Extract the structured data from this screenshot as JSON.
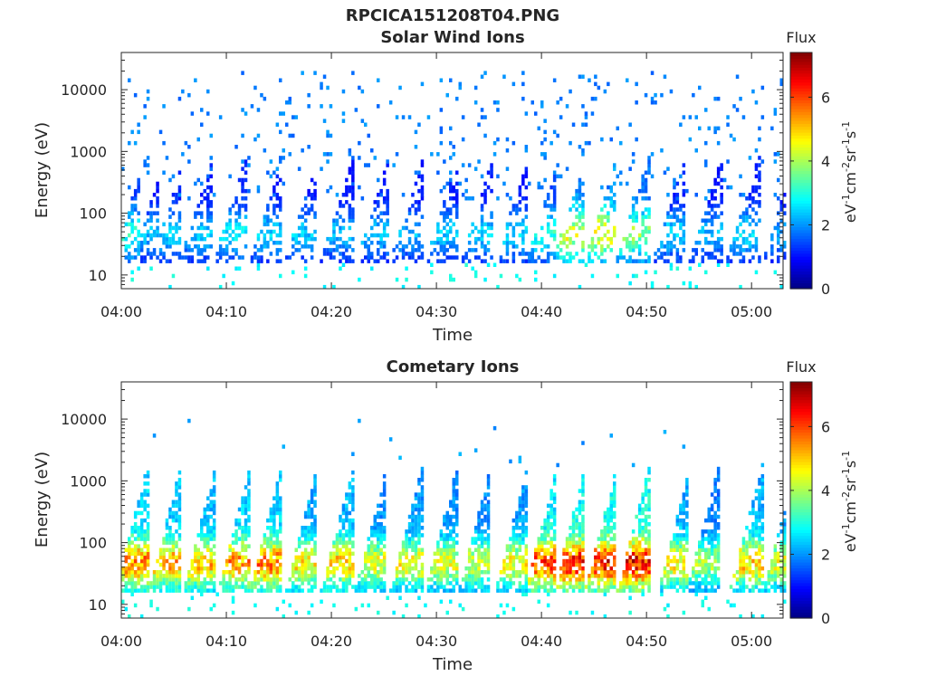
{
  "figure_title": "RPCICA151208T04.PNG",
  "chart_data": [
    {
      "type": "heatmap",
      "title": "Solar Wind Ions",
      "xlabel": "Time",
      "ylabel": "Energy (eV)",
      "x_ticks": [
        "04:00",
        "04:10",
        "04:20",
        "04:30",
        "04:40",
        "04:50",
        "05:00"
      ],
      "x_range_minutes": [
        0,
        63
      ],
      "y_scale": "log",
      "y_ticks": [
        10,
        100,
        1000,
        10000
      ],
      "y_tick_labels": [
        "10",
        "100",
        "1000",
        "10000"
      ],
      "ylim": [
        6,
        40000
      ],
      "colorbar": {
        "title": "Flux",
        "label": "eV-1cm-2sr-1s-1",
        "range": [
          0,
          7.4
        ],
        "ticks": [
          "0",
          "2",
          "4",
          "6"
        ],
        "colormap": "jet"
      },
      "scans": [
        {
          "t": 0.6,
          "flux": 3.2
        },
        {
          "t": 2.5,
          "flux": 2.4
        },
        {
          "t": 4.3,
          "flux": 2.6
        },
        {
          "t": 7.0,
          "flux": 2.5
        },
        {
          "t": 10.2,
          "flux": 2.8
        },
        {
          "t": 13.7,
          "flux": 2.6
        },
        {
          "t": 17.0,
          "flux": 2.5
        },
        {
          "t": 20.4,
          "flux": 2.4
        },
        {
          "t": 23.8,
          "flux": 2.5
        },
        {
          "t": 27.0,
          "flux": 2.4
        },
        {
          "t": 30.4,
          "flux": 2.5
        },
        {
          "t": 33.7,
          "flux": 2.6
        },
        {
          "t": 37.0,
          "flux": 2.6
        },
        {
          "t": 40.0,
          "flux": 3.2
        },
        {
          "t": 42.5,
          "flux": 4.6
        },
        {
          "t": 45.5,
          "flux": 4.8
        },
        {
          "t": 48.5,
          "flux": 4.0
        },
        {
          "t": 52.0,
          "flux": 2.6
        },
        {
          "t": 55.5,
          "flux": 2.4
        },
        {
          "t": 59.0,
          "flux": 2.7
        },
        {
          "t": 62.5,
          "flux": 2.3
        }
      ],
      "background_energy_range": [
        150,
        20000
      ],
      "background_flux": 1.6
    },
    {
      "type": "heatmap",
      "title": "Cometary Ions",
      "xlabel": "Time",
      "ylabel": "Energy (eV)",
      "x_ticks": [
        "04:00",
        "04:10",
        "04:20",
        "04:30",
        "04:40",
        "04:50",
        "05:00"
      ],
      "x_range_minutes": [
        0,
        63
      ],
      "y_scale": "log",
      "y_ticks": [
        10,
        100,
        1000,
        10000
      ],
      "y_tick_labels": [
        "10",
        "100",
        "1000",
        "10000"
      ],
      "ylim": [
        6,
        40000
      ],
      "colorbar": {
        "title": "Flux",
        "label": "eV-1cm-2sr-1s-1",
        "range": [
          0,
          7.4
        ],
        "ticks": [
          "0",
          "2",
          "4",
          "6"
        ],
        "colormap": "jet"
      },
      "scans": [
        {
          "t": 0.8,
          "flux": 5.8
        },
        {
          "t": 4.0,
          "flux": 5.5
        },
        {
          "t": 7.3,
          "flux": 5.3
        },
        {
          "t": 10.6,
          "flux": 5.6
        },
        {
          "t": 13.6,
          "flux": 5.8
        },
        {
          "t": 17.0,
          "flux": 5.0
        },
        {
          "t": 20.4,
          "flux": 5.2
        },
        {
          "t": 23.6,
          "flux": 4.6
        },
        {
          "t": 27.0,
          "flux": 4.8
        },
        {
          "t": 30.3,
          "flux": 4.6
        },
        {
          "t": 33.5,
          "flux": 4.5
        },
        {
          "t": 37.0,
          "flux": 4.8
        },
        {
          "t": 39.8,
          "flux": 6.2
        },
        {
          "t": 42.5,
          "flux": 6.6
        },
        {
          "t": 45.5,
          "flux": 6.6
        },
        {
          "t": 48.6,
          "flux": 6.7
        },
        {
          "t": 52.5,
          "flux": 5.0
        },
        {
          "t": 55.2,
          "flux": 4.2
        },
        {
          "t": 59.3,
          "flux": 5.2
        },
        {
          "t": 62.5,
          "flux": 4.6
        }
      ],
      "background_energy_range": [
        1500,
        10000
      ],
      "background_flux": 1.8
    }
  ]
}
